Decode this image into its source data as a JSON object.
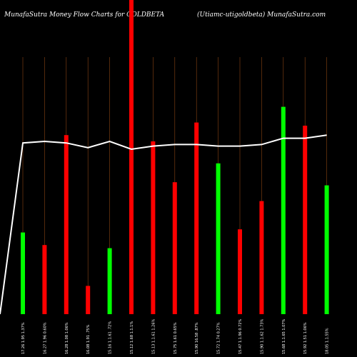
{
  "header": {
    "left_title": "MunafaSutra  Money Flow  Charts for GOLDBETA",
    "right_title": "(Utiamc-utigoldbeta) MunafaSutra.com"
  },
  "colors": {
    "background": "#000000",
    "up": "#00ff00",
    "down": "#ff0000",
    "guide": "#8b4513",
    "line": "#ffffff"
  },
  "chart_data": {
    "type": "bar",
    "title": "MunafaSutra  Money Flow  Charts for GOLDBETA",
    "subtitle": "(Utiamc-utigoldbeta) MunafaSutra.com",
    "ylim": [
      0,
      100
    ],
    "categories": [
      "17.26 1.95 1.37%",
      "16.27 1.96 0.60%",
      "16.28 1.08 1.06%",
      "16.08 1.91 .75%",
      "15.16 1.1.61 .72%",
      "15.12 1.68 1.1.1%",
      "15.13 1.1.61 1.26%",
      "15.75 1.61 0.65%",
      "15.90 16.58 .87%",
      "15.72 1.74 0.27%",
      "15.47 1.1.96 0.72%",
      "15.90 1.1.62 1.73%",
      "15.68 1.1.65 1.07%",
      "15.92 1.51 1.06%",
      "18.05 1.1.55%"
    ],
    "series": [
      {
        "values": [
          26,
          22,
          57,
          9,
          21,
          100,
          55,
          42,
          61,
          48,
          27,
          36,
          66,
          60,
          41
        ],
        "direction": [
          "up",
          "down",
          "down",
          "down",
          "up",
          "down",
          "down",
          "down",
          "down",
          "up",
          "down",
          "down",
          "up",
          "down",
          "up"
        ]
      },
      {
        "values": [
          54.5,
          55,
          54.5,
          53,
          55,
          52.5,
          53.5,
          54,
          54,
          53.5,
          53.5,
          54,
          56,
          56,
          57
        ]
      }
    ]
  }
}
